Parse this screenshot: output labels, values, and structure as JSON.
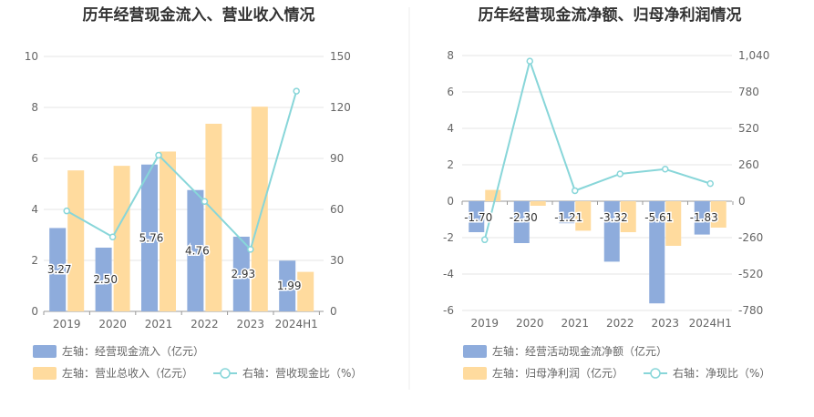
{
  "chart_data": [
    {
      "type": "bar",
      "title": "历年经营现金流入、营业收入情况",
      "categories": [
        "2019",
        "2020",
        "2021",
        "2022",
        "2023",
        "2024H1"
      ],
      "left_axis": {
        "ylim": [
          0,
          10
        ],
        "ticks": [
          "0",
          "2",
          "4",
          "6",
          "8",
          "10"
        ]
      },
      "right_axis": {
        "ylim": [
          0,
          150
        ],
        "ticks": [
          "0",
          "30",
          "60",
          "90",
          "120",
          "150"
        ]
      },
      "series": [
        {
          "name": "左轴：经营现金流入（亿元）",
          "axis": "left",
          "kind": "bar",
          "color": "#8eacdc",
          "values": [
            3.27,
            2.5,
            5.76,
            4.76,
            2.93,
            1.99
          ],
          "labels": [
            "3.27",
            "2.50",
            "5.76",
            "4.76",
            "2.93",
            "1.99"
          ]
        },
        {
          "name": "左轴：营业总收入（亿元）",
          "axis": "left",
          "kind": "bar",
          "color": "#ffdb9e",
          "values": [
            5.53,
            5.71,
            6.27,
            7.36,
            8.03,
            1.55
          ]
        },
        {
          "name": "右轴：营收现金比（%）",
          "axis": "right",
          "kind": "line",
          "color": "#88d6d9",
          "values": [
            59.1,
            43.8,
            91.9,
            64.7,
            36.5,
            129.6
          ]
        }
      ]
    },
    {
      "type": "bar",
      "title": "历年经营现金流净额、归母净利润情况",
      "categories": [
        "2019",
        "2020",
        "2021",
        "2022",
        "2023",
        "2024H1"
      ],
      "left_axis": {
        "ylim": [
          -6,
          8
        ],
        "ticks": [
          "-6",
          "-4",
          "-2",
          "0",
          "2",
          "4",
          "6",
          "8"
        ]
      },
      "right_axis": {
        "ylim": [
          -780,
          1040
        ],
        "ticks": [
          "-780",
          "-520",
          "-260",
          "0",
          "260",
          "520",
          "780",
          "1,040"
        ]
      },
      "series": [
        {
          "name": "左轴：经营活动现金流净额（亿元）",
          "axis": "left",
          "kind": "bar",
          "color": "#8eacdc",
          "values": [
            -1.7,
            -2.3,
            -1.21,
            -3.32,
            -5.61,
            -1.83
          ],
          "labels": [
            "-1.70",
            "-2.30",
            "-1.21",
            "-3.32",
            "-5.61",
            "-1.83"
          ]
        },
        {
          "name": "左轴：归母净利润（亿元）",
          "axis": "left",
          "kind": "bar",
          "color": "#ffdb9e",
          "values": [
            0.62,
            -0.25,
            -1.62,
            -1.7,
            -2.45,
            -1.45
          ]
        },
        {
          "name": "右轴：净现比（%）",
          "axis": "right",
          "kind": "line",
          "color": "#88d6d9",
          "values": [
            -275,
            1000,
            75,
            195,
            229,
            126
          ]
        }
      ]
    }
  ]
}
